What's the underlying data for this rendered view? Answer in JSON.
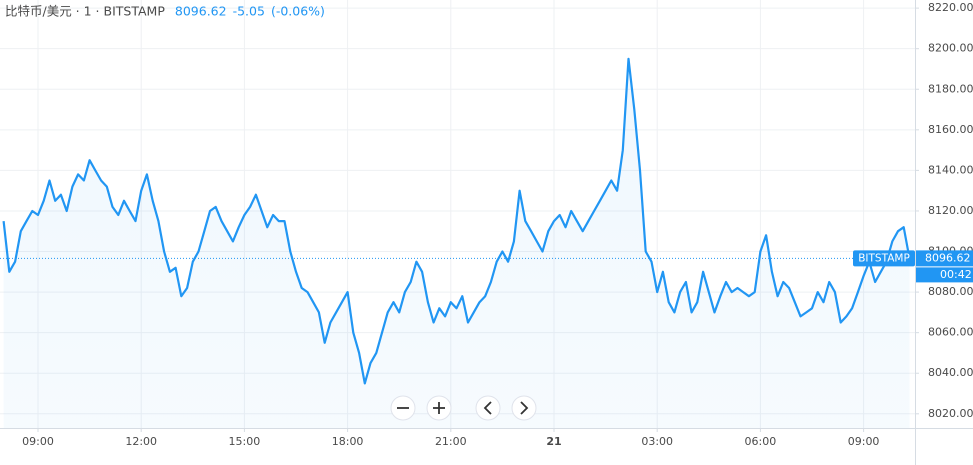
{
  "chart_data": {
    "type": "line",
    "title": "比特币/美元 · 1 · BITSTAMP",
    "last_price": 8096.62,
    "change": -5.05,
    "change_pct": {
      "value": -0.06,
      "label": "(-0.06%)"
    },
    "price_label": "BITSTAMP",
    "countdown": "00:42",
    "color": "#2196f3",
    "grid": true,
    "categories": [
      null,
      null,
      null,
      null,
      null,
      null,
      "09:00",
      null,
      null,
      null,
      null,
      null,
      null,
      null,
      null,
      null,
      null,
      null,
      null,
      null,
      null,
      null,
      null,
      null,
      "12:00",
      null,
      null,
      null,
      null,
      null,
      null,
      null,
      null,
      null,
      null,
      null,
      null,
      null,
      null,
      null,
      null,
      null,
      "15:00",
      null,
      null,
      null,
      null,
      null,
      null,
      null,
      null,
      null,
      null,
      null,
      null,
      null,
      null,
      null,
      null,
      null,
      "18:00",
      null,
      null,
      null,
      null,
      null,
      null,
      null,
      null,
      null,
      null,
      null,
      null,
      null,
      null,
      null,
      null,
      null,
      "21:00",
      null,
      null,
      null,
      null,
      null,
      null,
      null,
      null,
      null,
      null,
      null,
      null,
      null,
      null,
      null,
      null,
      null,
      "21",
      null,
      null,
      null,
      null,
      null,
      null,
      null,
      null,
      null,
      null,
      null,
      null,
      null,
      null,
      null,
      null,
      null,
      "03:00",
      null,
      null,
      null,
      null,
      null,
      null,
      null,
      null,
      null,
      null,
      null,
      null,
      null,
      null,
      null,
      null,
      null,
      "06:00",
      null,
      null,
      null,
      null,
      null,
      null,
      null,
      null,
      null,
      null,
      null,
      null,
      null,
      null,
      null,
      null,
      null,
      "09:00",
      null,
      null,
      null,
      null,
      null,
      null,
      null,
      null
    ],
    "values": [
      8115,
      8090,
      8095,
      8110,
      8115,
      8120,
      8118,
      8125,
      8135,
      8125,
      8128,
      8120,
      8132,
      8138,
      8135,
      8145,
      8140,
      8135,
      8132,
      8122,
      8118,
      8125,
      8120,
      8115,
      8130,
      8138,
      8125,
      8115,
      8100,
      8090,
      8092,
      8078,
      8082,
      8095,
      8100,
      8110,
      8120,
      8122,
      8115,
      8110,
      8105,
      8112,
      8118,
      8122,
      8128,
      8120,
      8112,
      8118,
      8115,
      8115,
      8100,
      8090,
      8082,
      8080,
      8075,
      8070,
      8055,
      8065,
      8070,
      8075,
      8080,
      8060,
      8050,
      8035,
      8045,
      8050,
      8060,
      8070,
      8075,
      8070,
      8080,
      8085,
      8095,
      8090,
      8075,
      8065,
      8072,
      8068,
      8075,
      8072,
      8078,
      8065,
      8070,
      8075,
      8078,
      8085,
      8095,
      8100,
      8095,
      8105,
      8130,
      8115,
      8110,
      8105,
      8100,
      8110,
      8115,
      8118,
      8112,
      8120,
      8115,
      8110,
      8115,
      8120,
      8125,
      8130,
      8135,
      8130,
      8150,
      8195,
      8170,
      8140,
      8100,
      8095,
      8080,
      8090,
      8075,
      8070,
      8080,
      8085,
      8070,
      8075,
      8090,
      8080,
      8070,
      8078,
      8085,
      8080,
      8082,
      8080,
      8078,
      8080,
      8100,
      8108,
      8090,
      8078,
      8085,
      8082,
      8075,
      8068,
      8070,
      8072,
      8080,
      8075,
      8085,
      8080,
      8065,
      8068,
      8072,
      8080,
      8088,
      8095,
      8085,
      8090,
      8095,
      8105,
      8110,
      8112,
      8096.62
    ],
    "ylim": [
      8013,
      8224
    ],
    "yticks": [
      {
        "value": 8020,
        "label": "8020.00"
      },
      {
        "value": 8040,
        "label": "8040.00"
      },
      {
        "value": 8060,
        "label": "8060.00"
      },
      {
        "value": 8080,
        "label": "8080.00"
      },
      {
        "value": 8100,
        "label": "8100.00"
      },
      {
        "value": 8120,
        "label": "8120.00"
      },
      {
        "value": 8140,
        "label": "8140.00"
      },
      {
        "value": 8160,
        "label": "8160.00"
      },
      {
        "value": 8180,
        "label": "8180.00"
      },
      {
        "value": 8200,
        "label": "8200.00"
      },
      {
        "value": 8220,
        "label": "8220.00"
      }
    ]
  }
}
